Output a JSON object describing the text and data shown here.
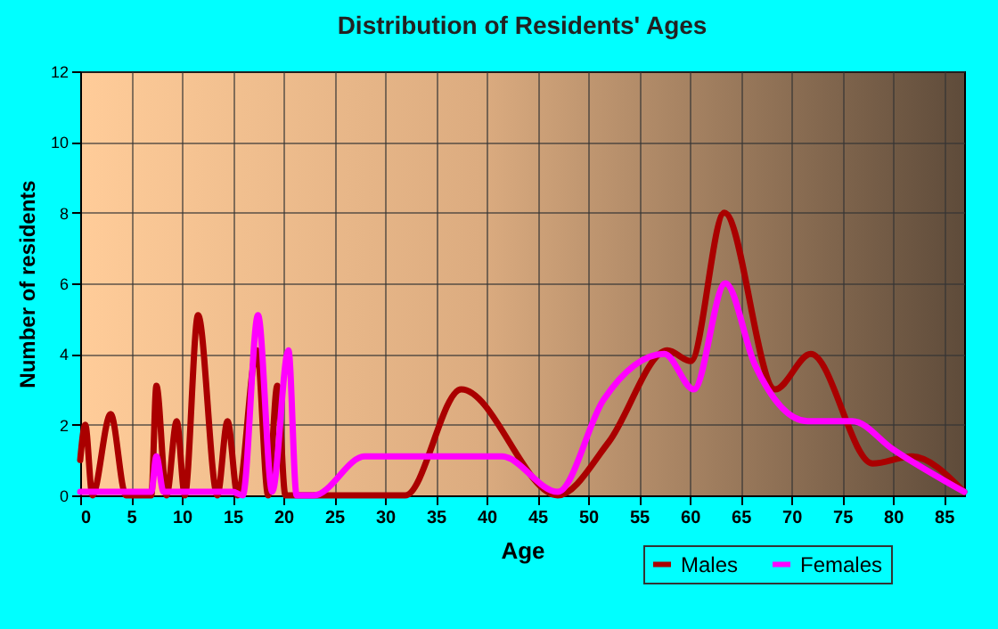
{
  "chart_data": {
    "type": "line",
    "title": "Distribution of Residents' Ages",
    "xlabel": "Age",
    "ylabel": "Number of residents",
    "xlim": [
      0,
      87
    ],
    "xticks": [
      0,
      5,
      10,
      15,
      20,
      25,
      30,
      35,
      40,
      45,
      50,
      55,
      60,
      65,
      70,
      75,
      80,
      85
    ],
    "ylim": [
      0,
      12
    ],
    "yticks": [
      0,
      2,
      4,
      6,
      8,
      10,
      12
    ],
    "grid": true,
    "legend": "bottom right",
    "marker": "none",
    "line_style": "solid",
    "series": [
      {
        "name": "Males",
        "color": "#aa0000",
        "x": [
          0,
          0.5,
          1.2,
          3,
          4.5,
          7,
          7.5,
          8.5,
          9.5,
          10.3,
          11.6,
          13.5,
          14.5,
          15.5,
          17.4,
          18.5,
          19.4,
          20.2,
          32,
          37.5,
          47,
          52,
          57.8,
          60.1,
          63.4,
          68.4,
          71.9,
          78,
          81.8,
          87
        ],
        "values": [
          1,
          2,
          0,
          2.3,
          0,
          0,
          3.1,
          0,
          2.1,
          0,
          5.1,
          0,
          2.1,
          0,
          4.1,
          0,
          3.1,
          0,
          0,
          3,
          0,
          1.5,
          4.1,
          3.8,
          8,
          3,
          4,
          0.9,
          1.1,
          0.1
        ]
      },
      {
        "name": "Females",
        "color": "#ff00ff",
        "x": [
          0,
          7,
          7.5,
          8.2,
          15,
          16,
          17.5,
          18.9,
          20.5,
          21.3,
          23,
          28,
          41.5,
          47,
          51.5,
          57.5,
          60.4,
          63.5,
          66.4,
          71.6,
          76,
          80,
          87
        ],
        "values": [
          0.1,
          0.1,
          1.1,
          0.1,
          0.1,
          0,
          5.1,
          0.1,
          4.1,
          0,
          0,
          1.1,
          1.1,
          0.1,
          2.7,
          4,
          3,
          6,
          3.7,
          2.1,
          2.1,
          1.3,
          0.1
        ]
      }
    ]
  }
}
